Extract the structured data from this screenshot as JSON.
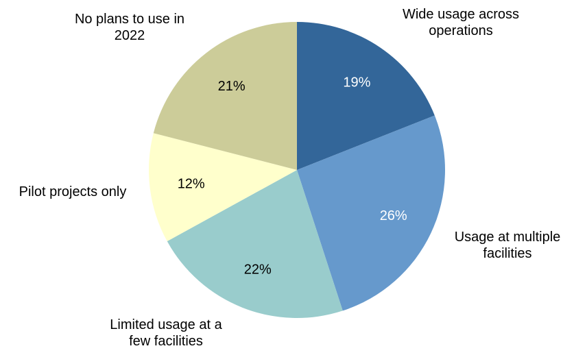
{
  "chart_data": {
    "type": "pie",
    "title": "",
    "slices": [
      {
        "label_lines": [
          "Wide usage across",
          "operations"
        ],
        "value": 19,
        "value_label": "19%",
        "color": "#336699",
        "value_label_color": "#ffffff"
      },
      {
        "label_lines": [
          "Usage at multiple",
          "facilities"
        ],
        "value": 26,
        "value_label": "26%",
        "color": "#6699CC",
        "value_label_color": "#ffffff"
      },
      {
        "label_lines": [
          "Limited usage at a",
          "few facilities"
        ],
        "value": 22,
        "value_label": "22%",
        "color": "#99CCCC",
        "value_label_color": "#000000"
      },
      {
        "label_lines": [
          "Pilot projects only"
        ],
        "value": 12,
        "value_label": "12%",
        "color": "#FFFFCC",
        "value_label_color": "#000000"
      },
      {
        "label_lines": [
          "No plans to use in",
          "2022"
        ],
        "value": 21,
        "value_label": "21%",
        "color": "#CCCC99",
        "value_label_color": "#000000"
      }
    ],
    "start_angle": "12 o'clock",
    "direction": "clockwise",
    "legend": "none"
  }
}
